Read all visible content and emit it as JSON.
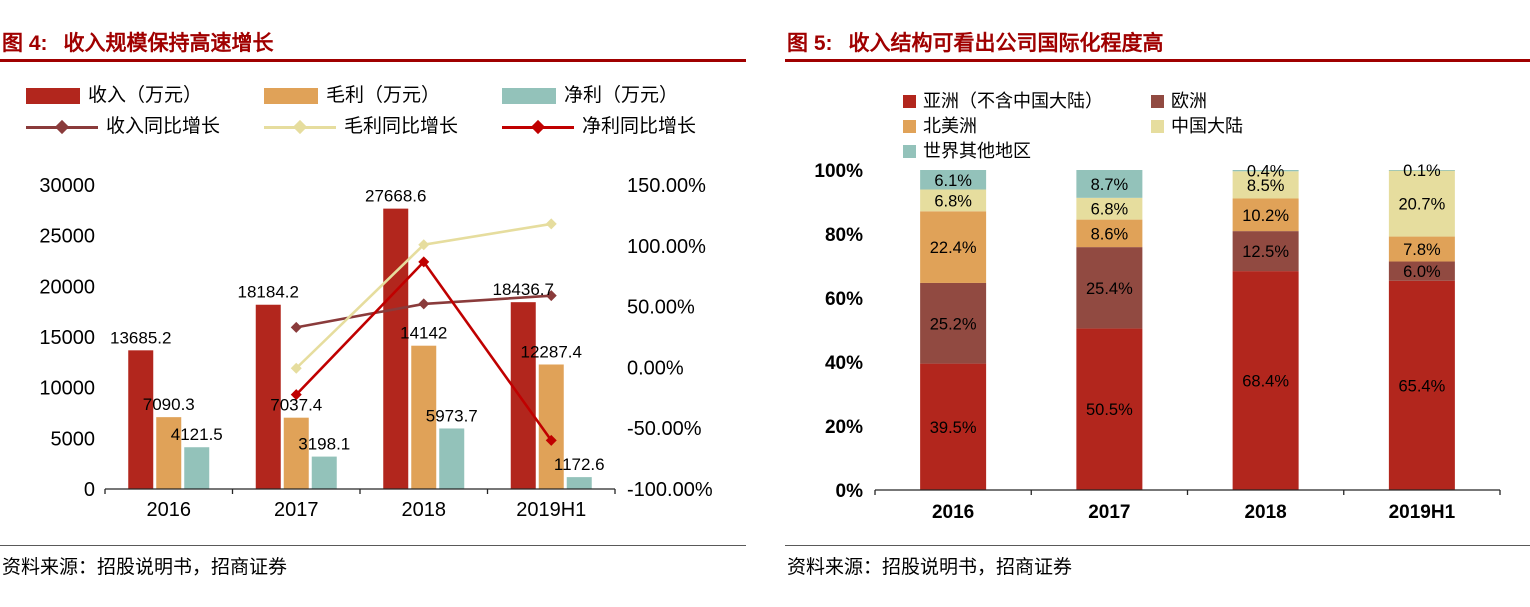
{
  "figure4": {
    "label": "图 4:",
    "title": "收入规模保持高速增长",
    "source": "资料来源：招股说明书，招商证券"
  },
  "figure5": {
    "label": "图 5:",
    "title": "收入结构可看出公司国际化程度高",
    "source": "资料来源：招股说明书，招商证券"
  },
  "colors": {
    "title_red": "#a00000",
    "revenue_red": "#b2261d",
    "gross_orange": "#e0a258",
    "net_teal": "#93c2ba",
    "revenue_growth_maroon": "#8a3b3b",
    "gross_growth_khaki": "#e6dd9e",
    "net_growth_red": "#c00000",
    "europe_brown": "#914a41",
    "axis_black": "#262626"
  },
  "chart_data": [
    {
      "type": "combo-bar-line",
      "title": "收入规模保持高速增长",
      "categories": [
        "2016",
        "2017",
        "2018",
        "2019H1"
      ],
      "bar_series": [
        {
          "name": "收入（万元）",
          "color": "#b2261d",
          "values": [
            13685.2,
            18184.2,
            27668.6,
            18436.7
          ],
          "labels": [
            "13685.2",
            "18184.2",
            "27668.6",
            "18436.7"
          ]
        },
        {
          "name": "毛利（万元）",
          "color": "#e0a258",
          "values": [
            7090.3,
            7037.4,
            14142,
            12287.4
          ],
          "labels": [
            "7090.3",
            "7037.4",
            "14142",
            "12287.4"
          ]
        },
        {
          "name": "净利（万元）",
          "color": "#93c2ba",
          "values": [
            4121.5,
            3198.1,
            5973.7,
            1172.6
          ],
          "labels": [
            "4121.5",
            "3198.1",
            "5973.7",
            "1172.6"
          ]
        }
      ],
      "line_series": [
        {
          "name": "收入同比增长",
          "color": "#8a3b3b",
          "values": [
            null,
            32.9,
            52.2,
            59.0
          ]
        },
        {
          "name": "毛利同比增长",
          "color": "#e6dd9e",
          "values": [
            null,
            -0.7,
            100.9,
            118.0
          ]
        },
        {
          "name": "净利同比增长",
          "color": "#c00000",
          "values": [
            null,
            -22.4,
            86.8,
            -60.0
          ]
        }
      ],
      "left_axis": {
        "min": 0,
        "max": 30000,
        "step": 5000,
        "ticks": [
          "30000",
          "25000",
          "20000",
          "15000",
          "10000",
          "5000",
          "0"
        ]
      },
      "right_axis": {
        "min": -100,
        "max": 150,
        "step": 50,
        "ticks": [
          "150.00%",
          "100.00%",
          "50.00%",
          "0.00%",
          "-50.00%",
          "-100.00%"
        ]
      },
      "grid": false,
      "legend_position": "top"
    },
    {
      "type": "stacked-bar-100",
      "title": "收入结构可看出公司国际化程度高",
      "categories": [
        "2016",
        "2017",
        "2018",
        "2019H1"
      ],
      "series": [
        {
          "name": "亚洲（不含中国大陆）",
          "color": "#b2261d",
          "values": [
            39.5,
            50.5,
            68.4,
            65.4
          ]
        },
        {
          "name": "欧洲",
          "color": "#914a41",
          "values": [
            25.2,
            25.4,
            12.5,
            6.0
          ]
        },
        {
          "name": "北美洲",
          "color": "#e0a258",
          "values": [
            22.4,
            8.6,
            10.2,
            7.8
          ]
        },
        {
          "name": "中国大陆",
          "color": "#e6dd9e",
          "values": [
            6.8,
            6.8,
            8.5,
            20.7
          ]
        },
        {
          "name": "世界其他地区",
          "color": "#93c2ba",
          "values": [
            6.1,
            8.7,
            0.4,
            0.1
          ]
        }
      ],
      "y_axis": {
        "min": 0,
        "max": 100,
        "step": 20,
        "ticks": [
          "100%",
          "80%",
          "60%",
          "40%",
          "20%",
          "0%"
        ]
      },
      "label_format": "percent",
      "grid": false,
      "legend_position": "top"
    }
  ]
}
